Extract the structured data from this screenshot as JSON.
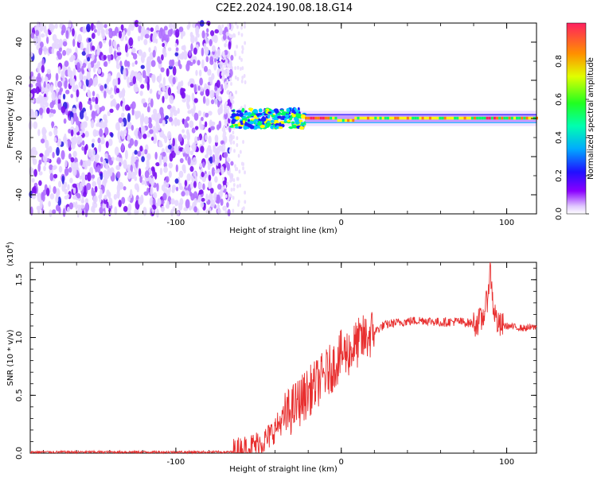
{
  "title": "C2E2.2024.190.08.18.G14",
  "chart_data": [
    {
      "type": "heatmap",
      "xlabel": "Height of straight line (km)",
      "ylabel": "Frequency (Hz)",
      "xlim": [
        -188,
        118
      ],
      "ylim": [
        -50,
        50
      ],
      "x_ticks": [
        -100,
        0,
        100
      ],
      "x_tick_labels": [
        "-100",
        "0",
        "100"
      ],
      "y_ticks": [
        -40,
        -20,
        0,
        20,
        40
      ],
      "y_tick_labels": [
        "-40",
        "-20",
        "0",
        "20",
        "40"
      ],
      "colorbar": {
        "label": "Normalized spectral amplitude",
        "range": [
          0.0,
          1.0
        ],
        "ticks": [
          0.0,
          0.2,
          0.4,
          0.6,
          0.8
        ],
        "tick_labels": [
          "0.0",
          "0.2",
          "0.4",
          "0.6",
          "0.8"
        ],
        "colormap": [
          "#ffffff",
          "#9a00ff",
          "#2020ff",
          "#00c8ff",
          "#00ff60",
          "#ffff00",
          "#ff8000",
          "#ff2060"
        ]
      },
      "regions": [
        {
          "name": "noise",
          "x_range": [
            -188,
            -66
          ],
          "amplitude": 0.1
        },
        {
          "name": "transition",
          "x_range": [
            -66,
            -22
          ],
          "amplitude": 0.35
        },
        {
          "name": "carrier",
          "x_range": [
            -22,
            118
          ],
          "amplitude": 0.6
        }
      ]
    },
    {
      "type": "line",
      "xlabel": "Height of straight line (km)",
      "ylabel": "SNR (10 * v/v)",
      "scale_label": "(x10",
      "scale_exponent": "4",
      "xlim": [
        -188,
        118
      ],
      "ylim": [
        0,
        1.65
      ],
      "x_ticks": [
        -100,
        0,
        100
      ],
      "x_tick_labels": [
        "-100",
        "0",
        "100"
      ],
      "y_ticks": [
        0.0,
        0.5,
        1.0,
        1.5
      ],
      "y_tick_labels": [
        "0.0",
        "0.5",
        "1.0",
        "1.5"
      ],
      "series": [
        {
          "color": "#e83030",
          "x": [
            -188,
            -150,
            -100,
            -66,
            -55,
            -45,
            -35,
            -25,
            -15,
            -5,
            0,
            5,
            10,
            15,
            20,
            25,
            30,
            40,
            50,
            60,
            70,
            80,
            85,
            88,
            90,
            92,
            95,
            100,
            110,
            118
          ],
          "y": [
            0.01,
            0.01,
            0.01,
            0.01,
            0.05,
            0.12,
            0.3,
            0.45,
            0.6,
            0.75,
            0.85,
            0.88,
            0.95,
            1.0,
            1.05,
            1.1,
            1.12,
            1.14,
            1.15,
            1.13,
            1.14,
            1.12,
            1.15,
            1.3,
            1.6,
            1.25,
            1.1,
            1.1,
            1.08,
            1.09
          ]
        }
      ]
    }
  ]
}
